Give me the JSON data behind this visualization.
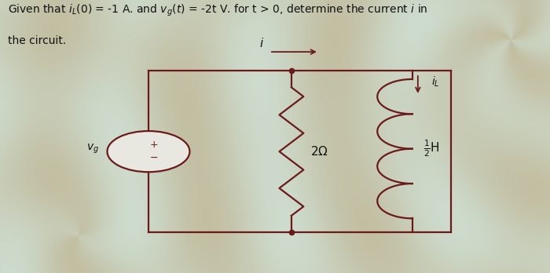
{
  "bg_color": "#c8cdb8",
  "text_color": "#1a1a1a",
  "circuit_color": "#6b1a1a",
  "fig_width": 7.0,
  "fig_height": 3.48,
  "dpi": 100,
  "L": 0.27,
  "R": 0.82,
  "T": 0.74,
  "B": 0.15,
  "M": 0.53,
  "RR": 0.75,
  "circ_r": 0.075,
  "lw": 1.6
}
